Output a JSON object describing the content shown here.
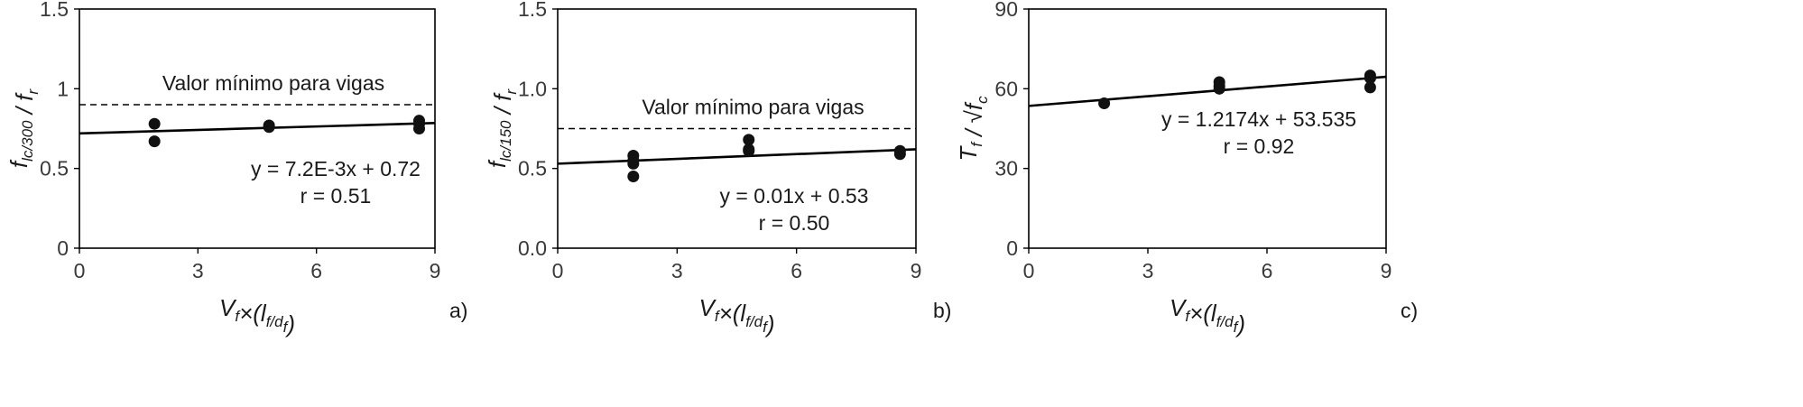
{
  "chart_data": [
    {
      "type": "scatter",
      "panel_label": "a)",
      "xlabel": "V_f×(l_f/d_f)",
      "ylabel": "f_lc/300 / f_r",
      "xlim": [
        0,
        9
      ],
      "ylim": [
        0,
        1.5
      ],
      "xticks": [
        "0",
        "3",
        "6",
        "9"
      ],
      "yticks": [
        "0",
        "0.5",
        "1",
        "1.5"
      ],
      "ytick_values": [
        0,
        0.5,
        1,
        1.5
      ],
      "grid": false,
      "series": [
        {
          "x": [
            1.9,
            1.9,
            4.8,
            4.8,
            8.6,
            8.6,
            8.6
          ],
          "y": [
            0.78,
            0.67,
            0.77,
            0.76,
            0.8,
            0.78,
            0.75
          ]
        }
      ],
      "trendline": {
        "slope": 0.0072,
        "intercept": 0.72,
        "equation": "y = 7.2E-3x + 0.72",
        "r_text": "r = 0.51"
      },
      "reference_line": {
        "y": 0.9,
        "label": "Valor mínimo para vigas"
      }
    },
    {
      "type": "scatter",
      "panel_label": "b)",
      "xlabel": "V_f×(l_f/d_f)",
      "ylabel": "f_lc/150 / f_r",
      "xlim": [
        0,
        9
      ],
      "ylim": [
        0,
        1.5
      ],
      "xticks": [
        "0",
        "3",
        "6",
        "9"
      ],
      "yticks": [
        "0.0",
        "0.5",
        "1.0",
        "1.5"
      ],
      "ytick_values": [
        0,
        0.5,
        1,
        1.5
      ],
      "grid": false,
      "series": [
        {
          "x": [
            1.9,
            1.9,
            1.9,
            1.9,
            4.8,
            4.8,
            4.8,
            8.6,
            8.6
          ],
          "y": [
            0.58,
            0.55,
            0.53,
            0.45,
            0.68,
            0.62,
            0.61,
            0.61,
            0.59
          ]
        }
      ],
      "trendline": {
        "slope": 0.01,
        "intercept": 0.53,
        "equation": "y = 0.01x + 0.53",
        "r_text": "r = 0.50"
      },
      "reference_line": {
        "y": 0.75,
        "label": "Valor mínimo para vigas"
      }
    },
    {
      "type": "scatter",
      "panel_label": "c)",
      "xlabel": "V_f×(l_f/d_f)",
      "ylabel": "T_f / √f_c",
      "xlim": [
        0,
        9
      ],
      "ylim": [
        0,
        90
      ],
      "xticks": [
        "0",
        "3",
        "6",
        "9"
      ],
      "yticks": [
        "0",
        "30",
        "60",
        "90"
      ],
      "ytick_values": [
        0,
        30,
        60,
        90
      ],
      "grid": false,
      "series": [
        {
          "x": [
            1.9,
            4.8,
            4.8,
            4.8,
            8.6,
            8.6,
            8.6
          ],
          "y": [
            54.5,
            62.5,
            61,
            60,
            65,
            64,
            60.5
          ]
        }
      ],
      "trendline": {
        "slope": 1.2174,
        "intercept": 53.535,
        "equation": "y = 1.2174x + 53.535",
        "r_text": "r = 0.92"
      }
    }
  ]
}
